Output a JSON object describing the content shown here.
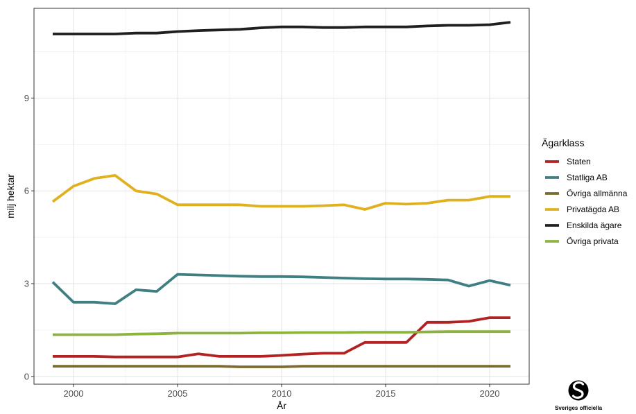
{
  "chart_data": {
    "type": "line",
    "xlabel": "År",
    "ylabel": "milj hektar",
    "xlim": [
      1998.1,
      2021.9
    ],
    "ylim": [
      -0.25,
      11.9
    ],
    "x_ticks": [
      2000,
      2005,
      2010,
      2015,
      2020
    ],
    "y_ticks": [
      0,
      3,
      6,
      9
    ],
    "x_minor": [
      2002.5,
      2007.5,
      2012.5,
      2017.5
    ],
    "y_minor": [
      1.5,
      4.5,
      7.5,
      10.5
    ],
    "grid": true,
    "legend_position": "right",
    "legend_title": "Ägarklass",
    "x": [
      1999,
      2000,
      2001,
      2002,
      2003,
      2004,
      2005,
      2006,
      2007,
      2008,
      2009,
      2010,
      2011,
      2012,
      2013,
      2014,
      2015,
      2016,
      2017,
      2018,
      2019,
      2020,
      2021
    ],
    "series": [
      {
        "name": "Staten",
        "color": "#B22222",
        "values": [
          0.65,
          0.65,
          0.65,
          0.63,
          0.63,
          0.63,
          0.63,
          0.73,
          0.65,
          0.65,
          0.65,
          0.68,
          0.72,
          0.75,
          0.75,
          1.1,
          1.1,
          1.1,
          1.75,
          1.75,
          1.78,
          1.9,
          1.9
        ]
      },
      {
        "name": "Statliga AB",
        "color": "#3F7F82",
        "values": [
          3.05,
          2.4,
          2.4,
          2.35,
          2.8,
          2.75,
          3.3,
          3.28,
          3.26,
          3.24,
          3.23,
          3.23,
          3.22,
          3.2,
          3.18,
          3.16,
          3.15,
          3.15,
          3.14,
          3.12,
          2.92,
          3.1,
          2.95
        ]
      },
      {
        "name": "Övriga allmänna",
        "color": "#7B6B2E",
        "values": [
          0.33,
          0.33,
          0.33,
          0.33,
          0.33,
          0.33,
          0.33,
          0.33,
          0.33,
          0.31,
          0.31,
          0.31,
          0.33,
          0.33,
          0.33,
          0.33,
          0.33,
          0.33,
          0.33,
          0.33,
          0.33,
          0.33,
          0.33
        ]
      },
      {
        "name": "Privatägda AB",
        "color": "#E0B11F",
        "values": [
          5.65,
          6.15,
          6.4,
          6.5,
          6.0,
          5.9,
          5.55,
          5.55,
          5.55,
          5.55,
          5.5,
          5.5,
          5.5,
          5.52,
          5.55,
          5.4,
          5.6,
          5.57,
          5.6,
          5.7,
          5.7,
          5.82,
          5.82
        ]
      },
      {
        "name": "Enskilda ägare",
        "color": "#1F1F1F",
        "values": [
          11.07,
          11.07,
          11.07,
          11.07,
          11.1,
          11.1,
          11.15,
          11.18,
          11.2,
          11.22,
          11.27,
          11.3,
          11.3,
          11.28,
          11.28,
          11.3,
          11.3,
          11.3,
          11.33,
          11.35,
          11.35,
          11.37,
          11.45
        ]
      },
      {
        "name": "Övriga privata",
        "color": "#8DB33F",
        "values": [
          1.35,
          1.35,
          1.35,
          1.35,
          1.37,
          1.38,
          1.4,
          1.4,
          1.4,
          1.4,
          1.41,
          1.41,
          1.42,
          1.42,
          1.42,
          1.43,
          1.43,
          1.43,
          1.44,
          1.45,
          1.45,
          1.45,
          1.45
        ]
      }
    ]
  },
  "logo": {
    "text": "Sveriges officiella"
  }
}
